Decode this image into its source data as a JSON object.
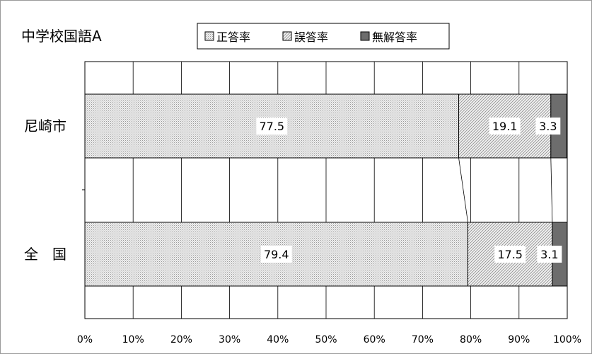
{
  "chart_data": {
    "type": "bar",
    "stacked": true,
    "orientation": "horizontal",
    "title": "中学校国語A",
    "categories": [
      "尼崎市",
      "全　国"
    ],
    "series": [
      {
        "name": "正答率",
        "values": [
          77.5,
          79.4
        ],
        "pattern": "dots",
        "color": "#e2e2e2"
      },
      {
        "name": "誤答率",
        "values": [
          19.1,
          17.5
        ],
        "pattern": "hatch",
        "color": "#ececec"
      },
      {
        "name": "無解答率",
        "values": [
          3.3,
          3.1
        ],
        "pattern": "solid",
        "color": "#6d6d6d"
      }
    ],
    "data_labels": [
      [
        "77.5",
        "19.1",
        "3.3"
      ],
      [
        "79.4",
        "17.5",
        "3.1"
      ]
    ],
    "xlim": [
      0,
      100
    ],
    "x_ticks": [
      "0%",
      "10%",
      "20%",
      "30%",
      "40%",
      "50%",
      "60%",
      "70%",
      "80%",
      "90%",
      "100%"
    ],
    "grid": true,
    "legend_position": "top",
    "series_lines": true
  }
}
